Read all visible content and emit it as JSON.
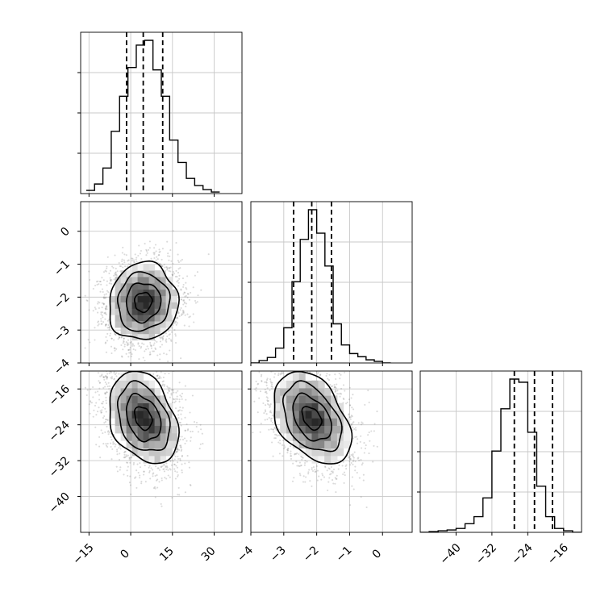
{
  "chart_data": {
    "type": "corner",
    "parameters": [
      {
        "ticks": [
          -15,
          0,
          15,
          30
        ],
        "range": [
          -18,
          40
        ],
        "mean": 4.5,
        "sd": 5.8,
        "quantiles": [
          -1.5,
          4.5,
          11.5
        ],
        "hist_x0": -16,
        "hist_bin": 3,
        "hist_counts": [
          4,
          12,
          32,
          78,
          122,
          158,
          186,
          192,
          155,
          122,
          67,
          39,
          19,
          10,
          5,
          2
        ]
      },
      {
        "ticks": [
          -4,
          -3,
          -2,
          -1,
          0
        ],
        "range": [
          -4,
          0.9
        ],
        "mean": -2.15,
        "sd": 0.55,
        "quantiles": [
          -2.7,
          -2.15,
          -1.55
        ],
        "hist_x0": -4,
        "hist_bin": 0.25,
        "hist_counts": [
          0,
          3,
          7,
          19,
          45,
          104,
          158,
          196,
          166,
          124,
          50,
          23,
          12,
          8,
          4,
          2,
          0
        ]
      },
      {
        "ticks": [
          -40,
          -32,
          -24,
          -16
        ],
        "range": [
          -48,
          -12
        ],
        "mean": -22.5,
        "sd": 4.8,
        "quantiles": [
          -27,
          -22.5,
          -18.5
        ],
        "hist_x0": -48,
        "hist_bin": 2,
        "hist_counts": [
          0,
          1,
          2,
          3,
          5,
          11,
          20,
          44,
          104,
          158,
          196,
          192,
          128,
          59,
          20,
          5,
          2,
          0
        ]
      }
    ],
    "pairs": [
      {
        "row": 1,
        "col": 0,
        "rho": 0.05
      },
      {
        "row": 2,
        "col": 0,
        "rho": -0.3
      },
      {
        "row": 2,
        "col": 1,
        "rho": -0.4
      }
    ],
    "n_points": 3200,
    "contour_levels_sigma": [
      0.5,
      1.0,
      1.5,
      2.0
    ],
    "grid": true
  }
}
